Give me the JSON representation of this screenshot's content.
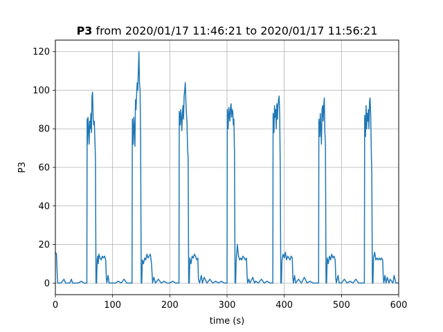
{
  "chart_data": {
    "type": "line",
    "title_bold": "P3",
    "title_rest": " from 2020/01/17 11:46:21 to 2020/01/17 11:56:21",
    "xlabel": "time (s)",
    "ylabel": "P3",
    "xlim": [
      0,
      600
    ],
    "ylim": [
      -6,
      126
    ],
    "xticks": [
      0,
      100,
      200,
      300,
      400,
      500,
      600
    ],
    "yticks": [
      0,
      20,
      40,
      60,
      80,
      100,
      120
    ],
    "grid": true,
    "line_color": "#1f77b4",
    "series": [
      {
        "values": [
          [
            0,
            16
          ],
          [
            2,
            15
          ],
          [
            3,
            6
          ],
          [
            4,
            0
          ],
          [
            10,
            0
          ],
          [
            15,
            2
          ],
          [
            18,
            0
          ],
          [
            25,
            0
          ],
          [
            28,
            2
          ],
          [
            30,
            0
          ],
          [
            40,
            0
          ],
          [
            45,
            1
          ],
          [
            50,
            0
          ],
          [
            55,
            0
          ],
          [
            55.5,
            85
          ],
          [
            56,
            72
          ],
          [
            57,
            86
          ],
          [
            58,
            80
          ],
          [
            59,
            72
          ],
          [
            60,
            84
          ],
          [
            61,
            80
          ],
          [
            62,
            88
          ],
          [
            63,
            78
          ],
          [
            64,
            97
          ],
          [
            65,
            99
          ],
          [
            66,
            86
          ],
          [
            67,
            82
          ],
          [
            68,
            84
          ],
          [
            69,
            75
          ],
          [
            70,
            65
          ],
          [
            71,
            0
          ],
          [
            72,
            0
          ],
          [
            73,
            12
          ],
          [
            74,
            14
          ],
          [
            75,
            10
          ],
          [
            76,
            15
          ],
          [
            78,
            13
          ],
          [
            80,
            12
          ],
          [
            82,
            14
          ],
          [
            84,
            13
          ],
          [
            86,
            14
          ],
          [
            88,
            12
          ],
          [
            89,
            3
          ],
          [
            90,
            0
          ],
          [
            92,
            4
          ],
          [
            94,
            0
          ],
          [
            100,
            0
          ],
          [
            105,
            0
          ],
          [
            110,
            1
          ],
          [
            115,
            0
          ],
          [
            120,
            2
          ],
          [
            125,
            0
          ],
          [
            130,
            0
          ],
          [
            134,
            0
          ],
          [
            134.5,
            85
          ],
          [
            136,
            72
          ],
          [
            137,
            86
          ],
          [
            138,
            80
          ],
          [
            139,
            71
          ],
          [
            140,
            95
          ],
          [
            141,
            90
          ],
          [
            142,
            98
          ],
          [
            143,
            104
          ],
          [
            144,
            100
          ],
          [
            145,
            110
          ],
          [
            146,
            120
          ],
          [
            147,
            104
          ],
          [
            148,
            100
          ],
          [
            149,
            75
          ],
          [
            150,
            0
          ],
          [
            151,
            0
          ],
          [
            152,
            12
          ],
          [
            154,
            10
          ],
          [
            156,
            13
          ],
          [
            158,
            12
          ],
          [
            160,
            15
          ],
          [
            162,
            13
          ],
          [
            164,
            14
          ],
          [
            166,
            15
          ],
          [
            168,
            10
          ],
          [
            169,
            5
          ],
          [
            170,
            0
          ],
          [
            172,
            3
          ],
          [
            175,
            0
          ],
          [
            180,
            2
          ],
          [
            185,
            0
          ],
          [
            190,
            1
          ],
          [
            195,
            0
          ],
          [
            200,
            0
          ],
          [
            205,
            1
          ],
          [
            210,
            0
          ],
          [
            215,
            0
          ],
          [
            216,
            0
          ],
          [
            216.5,
            89
          ],
          [
            218,
            82
          ],
          [
            219,
            90
          ],
          [
            220,
            86
          ],
          [
            221,
            79
          ],
          [
            222,
            88
          ],
          [
            223,
            92
          ],
          [
            224,
            85
          ],
          [
            225,
            97
          ],
          [
            226,
            100
          ],
          [
            227,
            104
          ],
          [
            228,
            95
          ],
          [
            229,
            88
          ],
          [
            230,
            84
          ],
          [
            231,
            70
          ],
          [
            232,
            65
          ],
          [
            233,
            0
          ],
          [
            234,
            0
          ],
          [
            235,
            13
          ],
          [
            237,
            10
          ],
          [
            239,
            14
          ],
          [
            241,
            13
          ],
          [
            243,
            15
          ],
          [
            245,
            14
          ],
          [
            247,
            12
          ],
          [
            249,
            13
          ],
          [
            250,
            2
          ],
          [
            252,
            0
          ],
          [
            255,
            4
          ],
          [
            257,
            0
          ],
          [
            260,
            3
          ],
          [
            265,
            0
          ],
          [
            270,
            2
          ],
          [
            275,
            0
          ],
          [
            280,
            1
          ],
          [
            285,
            0
          ],
          [
            290,
            1
          ],
          [
            295,
            0
          ],
          [
            300,
            0
          ],
          [
            300.5,
            90
          ],
          [
            302,
            80
          ],
          [
            303,
            91
          ],
          [
            304,
            88
          ],
          [
            305,
            84
          ],
          [
            306,
            91
          ],
          [
            307,
            93
          ],
          [
            308,
            86
          ],
          [
            309,
            90
          ],
          [
            310,
            89
          ],
          [
            311,
            82
          ],
          [
            312,
            85
          ],
          [
            313,
            68
          ],
          [
            314,
            0
          ],
          [
            315,
            0
          ],
          [
            316,
            12
          ],
          [
            318,
            20
          ],
          [
            320,
            14
          ],
          [
            322,
            12
          ],
          [
            324,
            13
          ],
          [
            326,
            12
          ],
          [
            328,
            14
          ],
          [
            330,
            13
          ],
          [
            332,
            12
          ],
          [
            334,
            13
          ],
          [
            335,
            4
          ],
          [
            336,
            0
          ],
          [
            338,
            2
          ],
          [
            340,
            0
          ],
          [
            345,
            3
          ],
          [
            348,
            0
          ],
          [
            350,
            1
          ],
          [
            355,
            0
          ],
          [
            360,
            2
          ],
          [
            365,
            0
          ],
          [
            370,
            1
          ],
          [
            375,
            0
          ],
          [
            380,
            0
          ],
          [
            380.5,
            88
          ],
          [
            382,
            78
          ],
          [
            383,
            92
          ],
          [
            384,
            86
          ],
          [
            385,
            90
          ],
          [
            386,
            80
          ],
          [
            387,
            93
          ],
          [
            388,
            85
          ],
          [
            389,
            92
          ],
          [
            390,
            95
          ],
          [
            391,
            97
          ],
          [
            392,
            88
          ],
          [
            393,
            60
          ],
          [
            394,
            0
          ],
          [
            395,
            0
          ],
          [
            396,
            12
          ],
          [
            398,
            15
          ],
          [
            400,
            13
          ],
          [
            402,
            16
          ],
          [
            404,
            12
          ],
          [
            406,
            14
          ],
          [
            408,
            13
          ],
          [
            410,
            12
          ],
          [
            412,
            14
          ],
          [
            414,
            13
          ],
          [
            415,
            3
          ],
          [
            416,
            0
          ],
          [
            418,
            4
          ],
          [
            420,
            0
          ],
          [
            425,
            2
          ],
          [
            430,
            0
          ],
          [
            435,
            3
          ],
          [
            440,
            0
          ],
          [
            445,
            1
          ],
          [
            450,
            0
          ],
          [
            455,
            0
          ],
          [
            460,
            0
          ],
          [
            460.5,
            85
          ],
          [
            462,
            76
          ],
          [
            463,
            88
          ],
          [
            464,
            80
          ],
          [
            465,
            72
          ],
          [
            466,
            90
          ],
          [
            467,
            92
          ],
          [
            468,
            84
          ],
          [
            469,
            92
          ],
          [
            470,
            96
          ],
          [
            471,
            78
          ],
          [
            472,
            72
          ],
          [
            473,
            0
          ],
          [
            474,
            0
          ],
          [
            475,
            13
          ],
          [
            477,
            10
          ],
          [
            479,
            14
          ],
          [
            481,
            12
          ],
          [
            483,
            15
          ],
          [
            485,
            13
          ],
          [
            487,
            14
          ],
          [
            489,
            12
          ],
          [
            490,
            3
          ],
          [
            491,
            0
          ],
          [
            494,
            4
          ],
          [
            496,
            0
          ],
          [
            500,
            0
          ],
          [
            505,
            2
          ],
          [
            510,
            0
          ],
          [
            515,
            1
          ],
          [
            520,
            0
          ],
          [
            525,
            2
          ],
          [
            530,
            0
          ],
          [
            535,
            0
          ],
          [
            540,
            0
          ],
          [
            540.5,
            87
          ],
          [
            542,
            76
          ],
          [
            543,
            92
          ],
          [
            544,
            80
          ],
          [
            545,
            88
          ],
          [
            546,
            84
          ],
          [
            547,
            90
          ],
          [
            548,
            80
          ],
          [
            549,
            94
          ],
          [
            550,
            96
          ],
          [
            551,
            88
          ],
          [
            552,
            70
          ],
          [
            553,
            56
          ],
          [
            554,
            0
          ],
          [
            555,
            0
          ],
          [
            556,
            13
          ],
          [
            558,
            16
          ],
          [
            560,
            12
          ],
          [
            562,
            13
          ],
          [
            564,
            12
          ],
          [
            566,
            13
          ],
          [
            568,
            12
          ],
          [
            570,
            13
          ],
          [
            572,
            12
          ],
          [
            573,
            3
          ],
          [
            574,
            0
          ],
          [
            576,
            4
          ],
          [
            578,
            0
          ],
          [
            580,
            3
          ],
          [
            583,
            0
          ],
          [
            585,
            2
          ],
          [
            590,
            0
          ],
          [
            592,
            4
          ],
          [
            595,
            0
          ],
          [
            600,
            0
          ]
        ]
      }
    ]
  }
}
